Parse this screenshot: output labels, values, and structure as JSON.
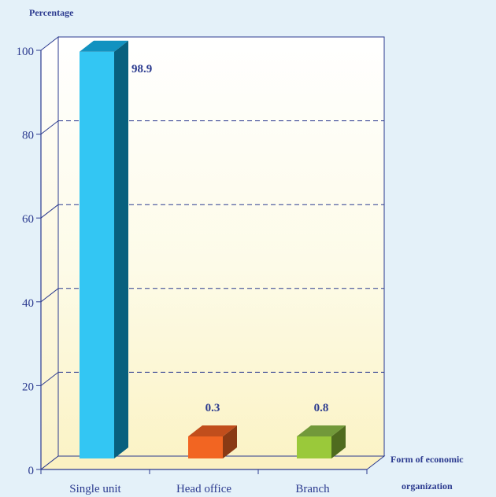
{
  "chart_data": {
    "type": "bar",
    "title": "",
    "ylabel": "Percentage",
    "xlabel": [
      "Form of economic",
      "organization"
    ],
    "categories": [
      "Single unit",
      "Head office",
      "Branch"
    ],
    "values": [
      98.9,
      0.3,
      0.8
    ],
    "data_labels": [
      "98.9",
      "0.3",
      "0.8"
    ],
    "ylim": [
      0,
      100
    ],
    "yticks": [
      0,
      20,
      40,
      60,
      80,
      100
    ],
    "grid": true,
    "bar_colors": [
      {
        "front": "#33c6f3",
        "side": "#08607e",
        "top": "#1292c0"
      },
      {
        "front": "#f26522",
        "side": "#8a3a14",
        "top": "#c14e1c"
      },
      {
        "front": "#9ac93a",
        "side": "#4f6b1f",
        "top": "#72993a"
      }
    ],
    "axis_color": "#2b3a8f",
    "text_color": "#2b3a8f"
  }
}
